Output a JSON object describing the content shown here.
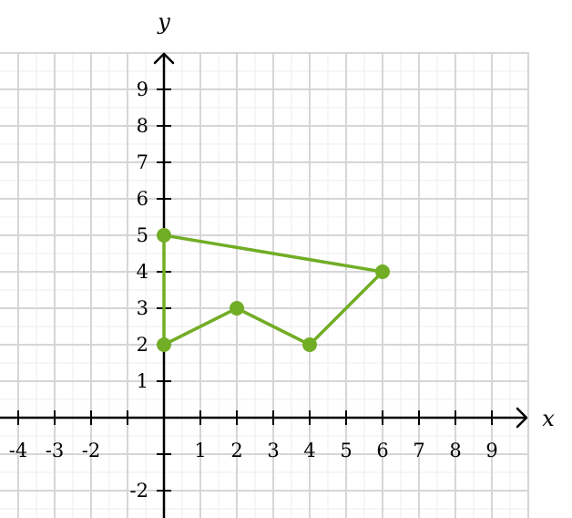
{
  "chart_data": {
    "type": "line",
    "xlabel": "x",
    "ylabel": "y",
    "xlim": [
      -4.5,
      10
    ],
    "ylim": [
      -2.75,
      10
    ],
    "x_tick_labels": [
      "-4",
      "-3",
      "-2",
      "1",
      "2",
      "3",
      "4",
      "5",
      "6",
      "7",
      "8",
      "9"
    ],
    "y_tick_labels": [
      "9",
      "8",
      "7",
      "6",
      "5",
      "4",
      "3",
      "2",
      "1",
      "-2"
    ],
    "grid": true,
    "series": [
      {
        "closed": true,
        "color": "#72ad26",
        "points": [
          {
            "x": 0,
            "y": 5
          },
          {
            "x": 6,
            "y": 4
          },
          {
            "x": 4,
            "y": 2
          },
          {
            "x": 2,
            "y": 3
          },
          {
            "x": 0,
            "y": 2
          }
        ]
      }
    ],
    "colors": {
      "grid_major": "#d6d6d6",
      "grid_minor": "#ededed",
      "axis": "#000000",
      "series": "#72ad26"
    }
  }
}
